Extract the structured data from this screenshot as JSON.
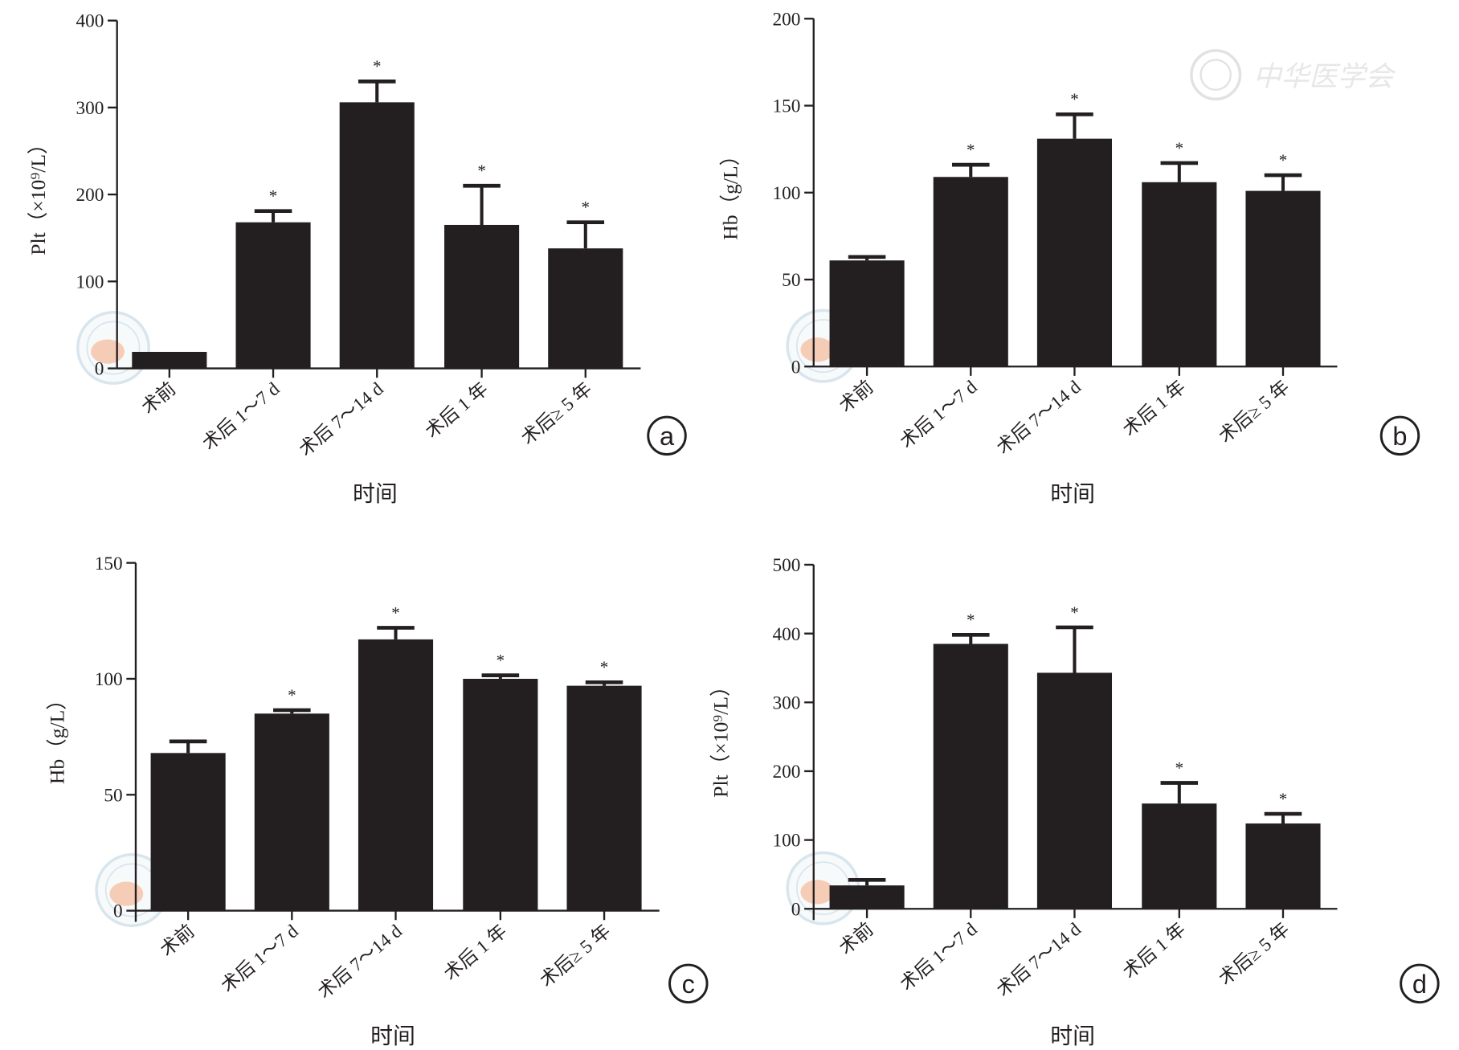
{
  "watermark": {
    "text": "中华医学会",
    "seal_color": "#c9dbe6",
    "map_color": "#f2b89a"
  },
  "colors": {
    "bar": "#231f20",
    "axis": "#231f20"
  },
  "chart_data": [
    {
      "panel": "a",
      "type": "bar",
      "categories": [
        "术前",
        "术后 1～7 d",
        "术后 7～14 d",
        "术后 1 年",
        "术后≥ 5 年"
      ],
      "values": [
        19,
        168,
        306,
        165,
        138
      ],
      "error_upper": [
        19,
        181,
        330,
        210,
        168
      ],
      "significance": [
        "",
        "*",
        "*",
        "*",
        "*"
      ],
      "xlabel": "时间",
      "ylabel": "Plt（×10⁹/L）",
      "ylim": [
        0,
        400
      ],
      "yticks": [
        0,
        100,
        200,
        300,
        400
      ],
      "grid": false
    },
    {
      "panel": "b",
      "type": "bar",
      "categories": [
        "术前",
        "术后 1～7 d",
        "术后 7～14 d",
        "术后 1 年",
        "术后≥ 5 年"
      ],
      "values": [
        61,
        109,
        131,
        106,
        101
      ],
      "error_upper": [
        63,
        116,
        145,
        117,
        110
      ],
      "significance": [
        "",
        "*",
        "*",
        "*",
        "*"
      ],
      "xlabel": "时间",
      "ylabel": "Hb（g/L）",
      "ylim": [
        0,
        200
      ],
      "yticks": [
        0,
        50,
        100,
        150,
        200
      ],
      "grid": false
    },
    {
      "panel": "c",
      "type": "bar",
      "categories": [
        "术前",
        "术后 1～7 d",
        "术后 7～14 d",
        "术后 1 年",
        "术后≥ 5 年"
      ],
      "values": [
        68,
        85,
        117,
        100,
        97
      ],
      "error_upper": [
        73,
        86.5,
        122,
        101.5,
        98.5
      ],
      "significance": [
        "",
        "*",
        "*",
        "*",
        "*"
      ],
      "xlabel": "时间",
      "ylabel": "Hb（g/L）",
      "ylim": [
        0,
        150
      ],
      "yticks": [
        0,
        50,
        100,
        150
      ],
      "grid": false
    },
    {
      "panel": "d",
      "type": "bar",
      "categories": [
        "术前",
        "术后 1～7 d",
        "术后 7～14 d",
        "术后 1 年",
        "术后≥ 5 年"
      ],
      "values": [
        34,
        385,
        343,
        153,
        124
      ],
      "error_upper": [
        42,
        398,
        409,
        183,
        138
      ],
      "significance": [
        "",
        "*",
        "*",
        "*",
        "*"
      ],
      "xlabel": "时间",
      "ylabel": "Plt（×10⁹/L）",
      "ylim": [
        0,
        500
      ],
      "yticks": [
        0,
        100,
        200,
        300,
        400,
        500
      ],
      "grid": false
    }
  ]
}
